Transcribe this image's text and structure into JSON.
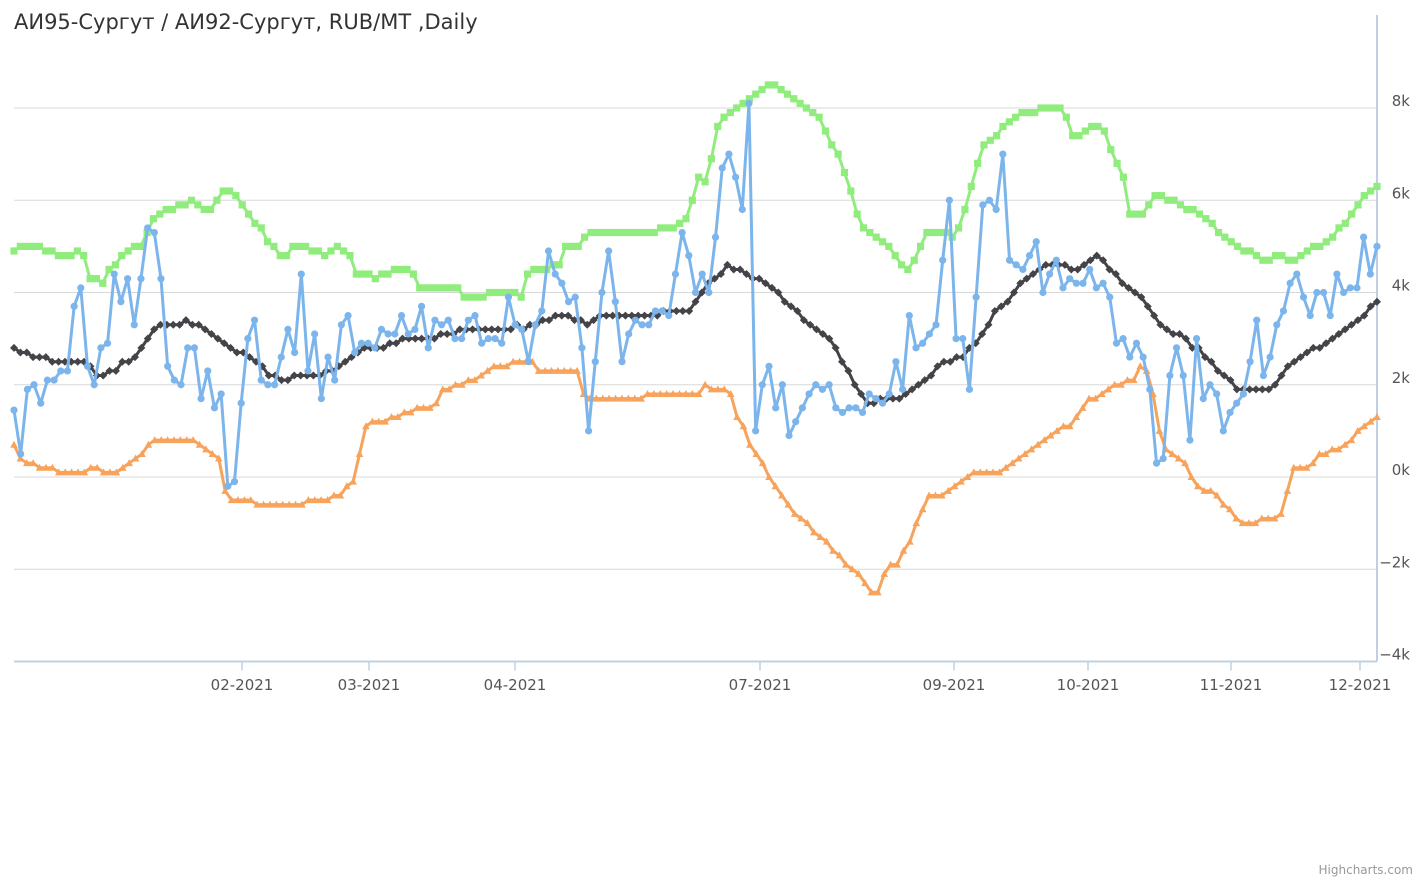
{
  "title": "АИ95-Сургут / АИ92-Сургут, RUB/MT ,Daily",
  "credits": "Highcharts.com",
  "colors": {
    "blue": "#7cb5ec",
    "green": "#90ed7d",
    "orange": "#f7a35c",
    "black": "#434348",
    "grid": "#d8d8d8",
    "axis": "#c0d0e0"
  },
  "chart_data": {
    "type": "line",
    "title": "АИ95-Сургут / АИ92-Сургут, RUB/MT ,Daily",
    "x_ticks": [
      "02-2021",
      "03-2021",
      "04-2021",
      "07-2021",
      "09-2021",
      "10-2021",
      "11-2021",
      "12-2021"
    ],
    "y_ticks": [
      "8k",
      "6k",
      "4k",
      "2k",
      "0k",
      "−2k",
      "−4k"
    ],
    "ylim": [
      -4000,
      10000
    ],
    "grid": true,
    "legend": "none",
    "series": [
      {
        "color": "#7cb5ec",
        "marker": "circle",
        "values": [
          1450,
          500,
          1900,
          2000,
          1600,
          2100,
          2100,
          2300,
          2300,
          3700,
          4100,
          2400,
          2000,
          2800,
          2900,
          4400,
          3800,
          4300,
          3300,
          4300,
          5400,
          5300,
          4300,
          2400,
          2100,
          2000,
          2800,
          2800,
          1700,
          2300,
          1500,
          1800,
          -200,
          -100,
          1600,
          3000,
          3400,
          2100,
          2000,
          2000,
          2600,
          3200,
          2700,
          4400,
          2300,
          3100,
          1700,
          2600,
          2100,
          3300,
          3500,
          2700,
          2900,
          2900,
          2800,
          3200,
          3100,
          3100,
          3500,
          3100,
          3200,
          3700,
          2800,
          3400,
          3300,
          3400,
          3000,
          3000,
          3400,
          3500,
          2900,
          3000,
          3000,
          2900,
          3900,
          3300,
          3200,
          2500,
          3300,
          3600,
          4900,
          4400,
          4200,
          3800,
          3900,
          2800,
          1000,
          2500,
          4000,
          4900,
          3800,
          2500,
          3100,
          3400,
          3300,
          3300,
          3600,
          3600,
          3500,
          4400,
          5300,
          4800,
          4000,
          4400,
          4000,
          5200,
          6700,
          7000,
          6500,
          5800,
          8100,
          1000,
          2000,
          2400,
          1500,
          2000,
          900,
          1200,
          1500,
          1800,
          2000,
          1900,
          2000,
          1500,
          1400,
          1500,
          1500,
          1400,
          1800,
          1700,
          1600,
          1800,
          2500,
          1900,
          3500,
          2800,
          2900,
          3100,
          3300,
          4700,
          6000,
          3000,
          3000,
          1900,
          3900,
          5900,
          6000,
          5800,
          7000,
          4700,
          4600,
          4500,
          4800,
          5100,
          4000,
          4400,
          4700,
          4100,
          4300,
          4200,
          4200,
          4500,
          4100,
          4200,
          3900,
          2900,
          3000,
          2600,
          2900,
          2600,
          1900,
          300,
          400,
          2200,
          2800,
          2200,
          800,
          3000,
          1700,
          2000,
          1800,
          1000,
          1400,
          1600,
          1800,
          2500,
          3400,
          2200,
          2600,
          3300,
          3600,
          4200,
          4400,
          3900,
          3500,
          4000,
          4000,
          3500,
          4400,
          4000,
          4100,
          4100,
          5200,
          4400,
          5000
        ]
      },
      {
        "color": "#90ed7d",
        "marker": "square",
        "values": [
          4900,
          5000,
          5000,
          5000,
          5000,
          4900,
          4900,
          4800,
          4800,
          4800,
          4900,
          4800,
          4300,
          4300,
          4200,
          4500,
          4600,
          4800,
          4900,
          5000,
          5000,
          5300,
          5600,
          5700,
          5800,
          5800,
          5900,
          5900,
          6000,
          5900,
          5800,
          5800,
          6000,
          6200,
          6200,
          6100,
          5900,
          5700,
          5500,
          5400,
          5100,
          5000,
          4800,
          4800,
          5000,
          5000,
          5000,
          4900,
          4900,
          4800,
          4900,
          5000,
          4900,
          4800,
          4400,
          4400,
          4400,
          4300,
          4400,
          4400,
          4500,
          4500,
          4500,
          4400,
          4100,
          4100,
          4100,
          4100,
          4100,
          4100,
          4100,
          3900,
          3900,
          3900,
          3900,
          4000,
          4000,
          4000,
          4000,
          4000,
          3900,
          4400,
          4500,
          4500,
          4500,
          4600,
          4600,
          5000,
          5000,
          5000,
          5200,
          5300,
          5300,
          5300,
          5300,
          5300,
          5300,
          5300,
          5300,
          5300,
          5300,
          5300,
          5400,
          5400,
          5400,
          5500,
          5600,
          6000,
          6500,
          6400,
          6900,
          7600,
          7800,
          7900,
          8000,
          8100,
          8200,
          8300,
          8400,
          8500,
          8500,
          8400,
          8300,
          8200,
          8100,
          8000,
          7900,
          7800,
          7500,
          7200,
          7000,
          6600,
          6200,
          5700,
          5400,
          5300,
          5200,
          5100,
          5000,
          4800,
          4600,
          4500,
          4700,
          5000,
          5300,
          5300,
          5300,
          5300,
          5200,
          5400,
          5800,
          6300,
          6800,
          7200,
          7300,
          7400,
          7600,
          7700,
          7800,
          7900,
          7900,
          7900,
          8000,
          8000,
          8000,
          8000,
          7800,
          7400,
          7400,
          7500,
          7600,
          7600,
          7500,
          7100,
          6800,
          6500,
          5700,
          5700,
          5700,
          5900,
          6100,
          6100,
          6000,
          6000,
          5900,
          5800,
          5800,
          5700,
          5600,
          5500,
          5300,
          5200,
          5100,
          5000,
          4900,
          4900,
          4800,
          4700,
          4700,
          4800,
          4800,
          4700,
          4700,
          4800,
          4900,
          5000,
          5000,
          5100,
          5200,
          5400,
          5500,
          5700,
          5900,
          6100,
          6200,
          6300
        ]
      },
      {
        "color": "#f7a35c",
        "marker": "triangle",
        "values": [
          700,
          400,
          300,
          300,
          200,
          200,
          200,
          100,
          100,
          100,
          100,
          100,
          200,
          200,
          100,
          100,
          100,
          200,
          300,
          400,
          500,
          700,
          800,
          800,
          800,
          800,
          800,
          800,
          800,
          700,
          600,
          500,
          400,
          -300,
          -500,
          -500,
          -500,
          -500,
          -600,
          -600,
          -600,
          -600,
          -600,
          -600,
          -600,
          -600,
          -500,
          -500,
          -500,
          -500,
          -400,
          -400,
          -200,
          -100,
          500,
          1100,
          1200,
          1200,
          1200,
          1300,
          1300,
          1400,
          1400,
          1500,
          1500,
          1500,
          1600,
          1900,
          1900,
          2000,
          2000,
          2100,
          2100,
          2200,
          2300,
          2400,
          2400,
          2400,
          2500,
          2500,
          2500,
          2500,
          2300,
          2300,
          2300,
          2300,
          2300,
          2300,
          2300,
          1800,
          1700,
          1700,
          1700,
          1700,
          1700,
          1700,
          1700,
          1700,
          1700,
          1800,
          1800,
          1800,
          1800,
          1800,
          1800,
          1800,
          1800,
          1800,
          2000,
          1900,
          1900,
          1900,
          1800,
          1300,
          1100,
          700,
          500,
          300,
          0,
          -200,
          -400,
          -600,
          -800,
          -900,
          -1000,
          -1200,
          -1300,
          -1400,
          -1600,
          -1700,
          -1900,
          -2000,
          -2100,
          -2300,
          -2500,
          -2500,
          -2100,
          -1900,
          -1900,
          -1600,
          -1400,
          -1000,
          -700,
          -400,
          -400,
          -400,
          -300,
          -200,
          -100,
          0,
          100,
          100,
          100,
          100,
          100,
          200,
          300,
          400,
          500,
          600,
          700,
          800,
          900,
          1000,
          1100,
          1100,
          1300,
          1500,
          1700,
          1700,
          1800,
          1900,
          2000,
          2000,
          2100,
          2100,
          2400,
          2300,
          1800,
          1000,
          600,
          500,
          400,
          300,
          0,
          -200,
          -300,
          -300,
          -400,
          -600,
          -700,
          -900,
          -1000,
          -1000,
          -1000,
          -900,
          -900,
          -900,
          -800,
          -300,
          200,
          200,
          200,
          300,
          500,
          500,
          600,
          600,
          700,
          800,
          1000,
          1100,
          1200,
          1300
        ]
      },
      {
        "color": "#434348",
        "marker": "diamond",
        "values": [
          2800,
          2700,
          2700,
          2600,
          2600,
          2600,
          2500,
          2500,
          2500,
          2500,
          2500,
          2500,
          2400,
          2200,
          2200,
          2300,
          2300,
          2500,
          2500,
          2600,
          2800,
          3000,
          3200,
          3300,
          3300,
          3300,
          3300,
          3400,
          3300,
          3300,
          3200,
          3100,
          3000,
          2900,
          2800,
          2700,
          2700,
          2600,
          2500,
          2400,
          2200,
          2200,
          2100,
          2100,
          2200,
          2200,
          2200,
          2200,
          2200,
          2300,
          2300,
          2400,
          2500,
          2600,
          2700,
          2800,
          2800,
          2800,
          2800,
          2900,
          2900,
          3000,
          3000,
          3000,
          3000,
          3000,
          3000,
          3100,
          3100,
          3100,
          3200,
          3200,
          3200,
          3200,
          3200,
          3200,
          3200,
          3200,
          3200,
          3300,
          3200,
          3300,
          3300,
          3400,
          3400,
          3500,
          3500,
          3500,
          3400,
          3400,
          3300,
          3400,
          3500,
          3500,
          3500,
          3500,
          3500,
          3500,
          3500,
          3500,
          3500,
          3500,
          3600,
          3600,
          3600,
          3600,
          3600,
          3800,
          4000,
          4200,
          4300,
          4400,
          4600,
          4500,
          4500,
          4400,
          4300,
          4300,
          4200,
          4100,
          4000,
          3800,
          3700,
          3600,
          3400,
          3300,
          3200,
          3100,
          3000,
          2800,
          2500,
          2300,
          2000,
          1800,
          1600,
          1600,
          1700,
          1700,
          1700,
          1700,
          1800,
          1900,
          2000,
          2100,
          2200,
          2400,
          2500,
          2500,
          2600,
          2600,
          2800,
          2900,
          3100,
          3300,
          3600,
          3700,
          3800,
          4000,
          4200,
          4300,
          4400,
          4500,
          4600,
          4600,
          4600,
          4600,
          4500,
          4500,
          4600,
          4700,
          4800,
          4700,
          4500,
          4400,
          4200,
          4100,
          4000,
          3900,
          3700,
          3500,
          3300,
          3200,
          3100,
          3100,
          3000,
          2800,
          2800,
          2600,
          2500,
          2300,
          2200,
          2100,
          1900,
          1900,
          1900,
          1900,
          1900,
          1900,
          2000,
          2200,
          2400,
          2500,
          2600,
          2700,
          2800,
          2800,
          2900,
          3000,
          3100,
          3200,
          3300,
          3400,
          3500,
          3700,
          3800
        ]
      }
    ]
  }
}
